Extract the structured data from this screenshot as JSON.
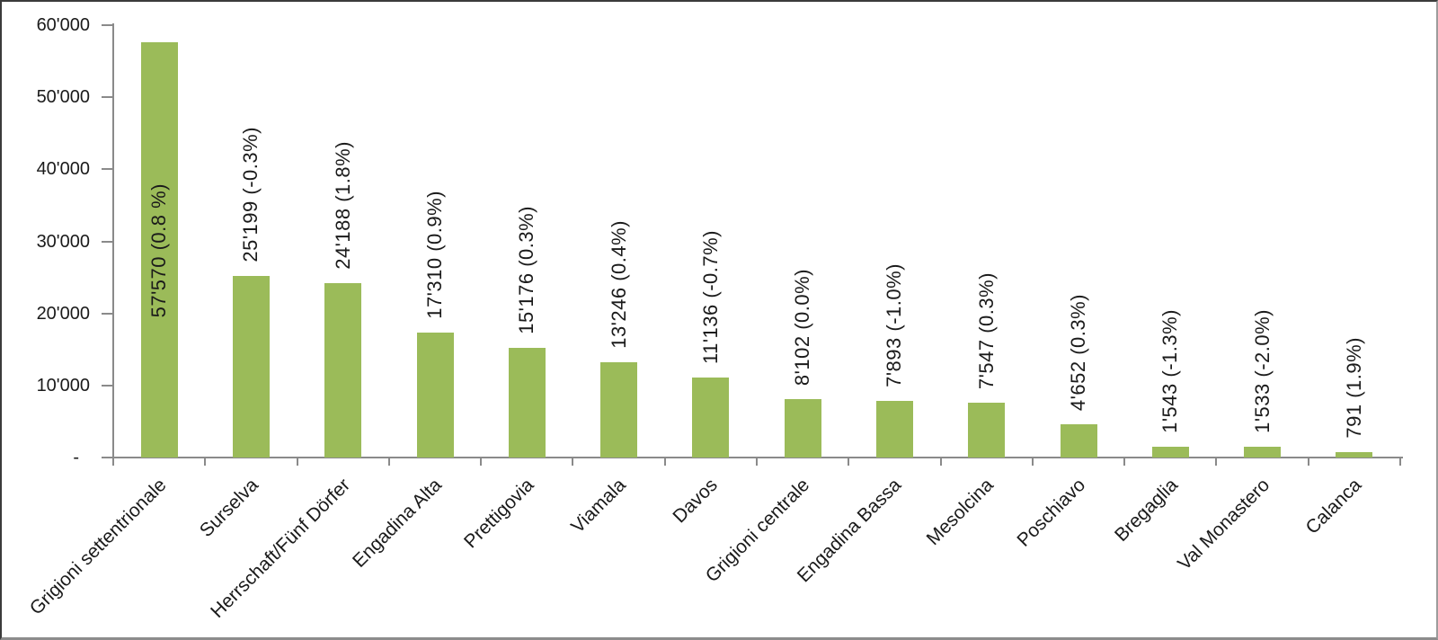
{
  "frame": {
    "background": "#ffffff",
    "border_dark": "#3b3b3b",
    "border_light": "#8c8c8c"
  },
  "chart_data": {
    "type": "bar",
    "title": "",
    "xlabel": "",
    "ylabel": "",
    "categories": [
      "Grigioni settentrionale",
      "Surselva",
      "Herrschaft/Fünf Dörfer",
      "Engadina Alta",
      "Prettigovia",
      "Viamala",
      "Davos",
      "Grigioni centrale",
      "Engadina Bassa",
      "Mesolcina",
      "Poschiavo",
      "Bregaglia",
      "Val Monastero",
      "Calanca"
    ],
    "values": [
      57570,
      25199,
      24188,
      17310,
      15176,
      13246,
      11136,
      8102,
      7893,
      7547,
      4652,
      1543,
      1533,
      791
    ],
    "data_labels": [
      "57'570 (0.8 %)",
      "25'199 (-0.3%)",
      "24'188 (1.8%)",
      "17'310 (0.9%)",
      "15'176 (0.3%)",
      "13'246 (0.4%)",
      "11'136 (-0.7%)",
      "8'102 (0.0%)",
      "7'893 (-1.0%)",
      "7'547 (0.3%)",
      "4'652 (0.3%)",
      "1'543 (-1.3%)",
      "1'533 (-2.0%)",
      "791 (1.9%)"
    ],
    "data_label_positions": [
      "inside-center",
      "outside-end",
      "outside-end",
      "outside-end",
      "outside-end",
      "outside-end",
      "outside-end",
      "outside-end",
      "outside-end",
      "outside-end",
      "outside-end",
      "outside-end",
      "outside-end",
      "outside-end"
    ],
    "ylim": [
      0,
      60000
    ],
    "y_tick_interval": 10000,
    "y_tick_labels": [
      "60'000",
      "50'000",
      "40'000",
      "30'000",
      "20'000",
      "10'000",
      "-"
    ],
    "grid": "off",
    "legend": "none",
    "bar_color": "#9BBB59",
    "axis_color": "#8A8A8A",
    "text_color": "#1A1A1A"
  }
}
